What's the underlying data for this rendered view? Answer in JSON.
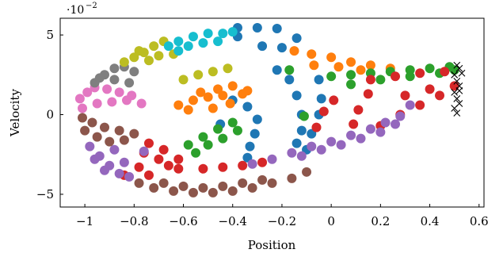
{
  "chart_data": {
    "type": "scatter",
    "xlabel": "Position",
    "ylabel": "Velocity",
    "xlim": [
      -1.1,
      0.62
    ],
    "ylim": [
      -0.058,
      0.0605
    ],
    "x_ticks": [
      -1,
      -0.8,
      -0.6,
      -0.4,
      -0.2,
      0,
      0.2,
      0.4,
      0.6
    ],
    "x_tick_labels": [
      "−1",
      "−0.8",
      "−0.6",
      "−0.4",
      "−0.2",
      "0",
      "0.2",
      "0.4",
      "0.6"
    ],
    "y_ticks": [
      -0.05,
      0,
      0.05
    ],
    "y_tick_labels": [
      "−5",
      "0",
      "5"
    ],
    "y_scale_base": "·10",
    "y_scale_exp": "−2",
    "grid": false,
    "legend": "none",
    "series": [
      {
        "color": "#1f77b4",
        "marker": "circle",
        "points": [
          [
            -0.22,
            0.054
          ],
          [
            -0.3,
            0.0545
          ],
          [
            -0.38,
            0.0545
          ],
          [
            -0.14,
            0.048
          ],
          [
            -0.28,
            0.043
          ],
          [
            -0.2,
            0.042
          ],
          [
            -0.38,
            0.049
          ],
          [
            -0.4,
            0.009
          ],
          [
            -0.34,
            0.005
          ],
          [
            -0.3,
            -0.003
          ],
          [
            -0.31,
            -0.012
          ],
          [
            -0.33,
            -0.02
          ],
          [
            -0.34,
            -0.027
          ],
          [
            -0.22,
            0.028
          ],
          [
            -0.17,
            0.022
          ],
          [
            -0.14,
            0.012
          ],
          [
            -0.12,
            0.0
          ],
          [
            -0.12,
            -0.01
          ],
          [
            -0.14,
            -0.018
          ],
          [
            -0.05,
            0.022
          ],
          [
            -0.04,
            0.01
          ],
          [
            -0.05,
            0.0
          ],
          [
            -0.08,
            -0.012
          ],
          [
            -0.1,
            -0.022
          ],
          [
            -0.45,
            -0.006
          ]
        ]
      },
      {
        "color": "#ff7f0e",
        "marker": "circle",
        "points": [
          [
            -0.15,
            0.04
          ],
          [
            -0.08,
            0.038
          ],
          [
            0.0,
            0.036
          ],
          [
            0.08,
            0.033
          ],
          [
            0.16,
            0.031
          ],
          [
            0.24,
            0.029
          ],
          [
            -0.07,
            0.031
          ],
          [
            0.03,
            0.03
          ],
          [
            0.12,
            0.028
          ],
          [
            -0.4,
            0.018
          ],
          [
            -0.34,
            0.015
          ],
          [
            -0.44,
            0.012
          ],
          [
            -0.5,
            0.011
          ],
          [
            -0.56,
            0.009
          ],
          [
            -0.62,
            0.006
          ],
          [
            -0.58,
            0.003
          ],
          [
            -0.48,
            0.004
          ],
          [
            -0.41,
            0.007
          ],
          [
            -0.36,
            0.013
          ],
          [
            -0.46,
            0.016
          ],
          [
            -0.53,
            0.014
          ]
        ]
      },
      {
        "color": "#2ca02c",
        "marker": "circle",
        "points": [
          [
            0.0,
            0.024
          ],
          [
            0.08,
            0.025
          ],
          [
            0.16,
            0.026
          ],
          [
            0.24,
            0.027
          ],
          [
            0.32,
            0.028
          ],
          [
            0.4,
            0.029
          ],
          [
            0.48,
            0.03
          ],
          [
            0.08,
            0.019
          ],
          [
            0.2,
            0.022
          ],
          [
            0.32,
            0.024
          ],
          [
            0.44,
            0.026
          ],
          [
            0.5,
            0.028
          ],
          [
            -0.17,
            0.028
          ],
          [
            -0.4,
            -0.005
          ],
          [
            -0.46,
            -0.009
          ],
          [
            -0.52,
            -0.014
          ],
          [
            -0.58,
            -0.019
          ],
          [
            -0.5,
            -0.019
          ],
          [
            -0.44,
            -0.015
          ],
          [
            -0.38,
            -0.01
          ],
          [
            -0.55,
            -0.024
          ],
          [
            -0.11,
            -0.001
          ]
        ]
      },
      {
        "color": "#d62728",
        "marker": "circle",
        "points": [
          [
            0.16,
            0.022
          ],
          [
            0.26,
            0.024
          ],
          [
            0.36,
            0.026
          ],
          [
            0.46,
            0.027
          ],
          [
            0.5,
            0.018
          ],
          [
            0.44,
            0.012
          ],
          [
            0.36,
            0.006
          ],
          [
            0.28,
            0.0
          ],
          [
            0.2,
            -0.007
          ],
          [
            0.3,
            0.012
          ],
          [
            0.4,
            0.016
          ],
          [
            0.15,
            0.013
          ],
          [
            0.11,
            0.003
          ],
          [
            0.09,
            -0.006
          ],
          [
            0.01,
            0.009
          ],
          [
            -0.03,
            0.002
          ],
          [
            -0.06,
            -0.008
          ],
          [
            -0.74,
            -0.018
          ],
          [
            -0.68,
            -0.022
          ],
          [
            -0.62,
            -0.028
          ],
          [
            -0.7,
            -0.028
          ],
          [
            -0.78,
            -0.033
          ],
          [
            -0.84,
            -0.038
          ],
          [
            -0.74,
            -0.038
          ],
          [
            -0.66,
            -0.032
          ],
          [
            -0.76,
            -0.024
          ],
          [
            -0.62,
            -0.034
          ],
          [
            -0.52,
            -0.034
          ],
          [
            -0.44,
            -0.033
          ],
          [
            -0.36,
            -0.032
          ],
          [
            -0.28,
            -0.03
          ]
        ]
      },
      {
        "color": "#9467bd",
        "marker": "circle",
        "points": [
          [
            -0.98,
            -0.02
          ],
          [
            -0.94,
            -0.026
          ],
          [
            -0.9,
            -0.032
          ],
          [
            -0.86,
            -0.037
          ],
          [
            -0.82,
            -0.039
          ],
          [
            -0.88,
            -0.022
          ],
          [
            -0.84,
            -0.03
          ],
          [
            -0.76,
            -0.023
          ],
          [
            -0.96,
            -0.028
          ],
          [
            -0.92,
            -0.035
          ],
          [
            -0.32,
            -0.031
          ],
          [
            -0.24,
            -0.028
          ],
          [
            -0.16,
            -0.024
          ],
          [
            -0.08,
            -0.02
          ],
          [
            0.0,
            -0.017
          ],
          [
            0.08,
            -0.013
          ],
          [
            0.16,
            -0.009
          ],
          [
            0.22,
            -0.005
          ],
          [
            0.28,
            -0.001
          ],
          [
            -0.12,
            -0.026
          ],
          [
            -0.04,
            -0.022
          ],
          [
            0.04,
            -0.019
          ],
          [
            0.12,
            -0.015
          ],
          [
            0.2,
            -0.011
          ],
          [
            0.26,
            -0.006
          ],
          [
            0.32,
            0.006
          ]
        ]
      },
      {
        "color": "#8c564b",
        "marker": "circle",
        "points": [
          [
            -1.01,
            -0.002
          ],
          [
            -0.97,
            -0.005
          ],
          [
            -0.92,
            -0.008
          ],
          [
            -0.86,
            -0.01
          ],
          [
            -0.8,
            -0.012
          ],
          [
            -1.0,
            -0.01
          ],
          [
            -0.95,
            -0.014
          ],
          [
            -0.9,
            -0.017
          ],
          [
            -0.84,
            -0.016
          ],
          [
            -0.78,
            -0.043
          ],
          [
            -0.72,
            -0.046
          ],
          [
            -0.64,
            -0.048
          ],
          [
            -0.56,
            -0.049
          ],
          [
            -0.48,
            -0.049
          ],
          [
            -0.4,
            -0.048
          ],
          [
            -0.32,
            -0.046
          ],
          [
            -0.24,
            -0.043
          ],
          [
            -0.16,
            -0.04
          ],
          [
            -0.1,
            -0.036
          ],
          [
            -0.28,
            -0.041
          ],
          [
            -0.36,
            -0.043
          ],
          [
            -0.44,
            -0.045
          ],
          [
            -0.52,
            -0.046
          ],
          [
            -0.6,
            -0.045
          ],
          [
            -0.68,
            -0.043
          ]
        ]
      },
      {
        "color": "#e377c2",
        "marker": "circle",
        "points": [
          [
            -1.02,
            0.01
          ],
          [
            -0.99,
            0.014
          ],
          [
            -0.96,
            0.017
          ],
          [
            -0.91,
            0.016
          ],
          [
            -0.86,
            0.014
          ],
          [
            -0.81,
            0.012
          ],
          [
            -1.01,
            0.004
          ],
          [
            -0.95,
            0.007
          ],
          [
            -0.89,
            0.008
          ],
          [
            -0.83,
            0.009
          ],
          [
            -0.77,
            0.007
          ]
        ]
      },
      {
        "color": "#7f7f7f",
        "marker": "circle",
        "points": [
          [
            -0.96,
            0.02
          ],
          [
            -0.92,
            0.025
          ],
          [
            -0.88,
            0.029
          ],
          [
            -0.84,
            0.03
          ],
          [
            -0.8,
            0.027
          ],
          [
            -0.88,
            0.022
          ],
          [
            -0.82,
            0.02
          ],
          [
            -0.94,
            0.023
          ]
        ]
      },
      {
        "color": "#bcbd22",
        "marker": "circle",
        "points": [
          [
            -0.84,
            0.033
          ],
          [
            -0.8,
            0.036
          ],
          [
            -0.76,
            0.039
          ],
          [
            -0.72,
            0.043
          ],
          [
            -0.68,
            0.046
          ],
          [
            -0.74,
            0.034
          ],
          [
            -0.7,
            0.037
          ],
          [
            -0.64,
            0.038
          ],
          [
            -0.78,
            0.04
          ],
          [
            -0.6,
            0.022
          ],
          [
            -0.54,
            0.025
          ],
          [
            -0.48,
            0.027
          ],
          [
            -0.42,
            0.029
          ]
        ]
      },
      {
        "color": "#17becf",
        "marker": "circle",
        "points": [
          [
            -0.62,
            0.046
          ],
          [
            -0.56,
            0.049
          ],
          [
            -0.5,
            0.051
          ],
          [
            -0.44,
            0.051
          ],
          [
            -0.4,
            0.052
          ],
          [
            -0.58,
            0.043
          ],
          [
            -0.52,
            0.045
          ],
          [
            -0.46,
            0.046
          ],
          [
            -0.66,
            0.043
          ],
          [
            -0.62,
            0.04
          ]
        ]
      },
      {
        "color": "#000000",
        "marker": "x",
        "points": [
          [
            0.51,
            0.031
          ],
          [
            0.52,
            0.029
          ],
          [
            0.5,
            0.025
          ],
          [
            0.51,
            0.021
          ],
          [
            0.52,
            0.018
          ],
          [
            0.5,
            0.014
          ],
          [
            0.51,
            0.01
          ],
          [
            0.52,
            0.007
          ],
          [
            0.5,
            0.004
          ],
          [
            0.51,
            0.001
          ],
          [
            0.53,
            0.026
          ],
          [
            0.52,
            0.015
          ]
        ]
      }
    ]
  }
}
